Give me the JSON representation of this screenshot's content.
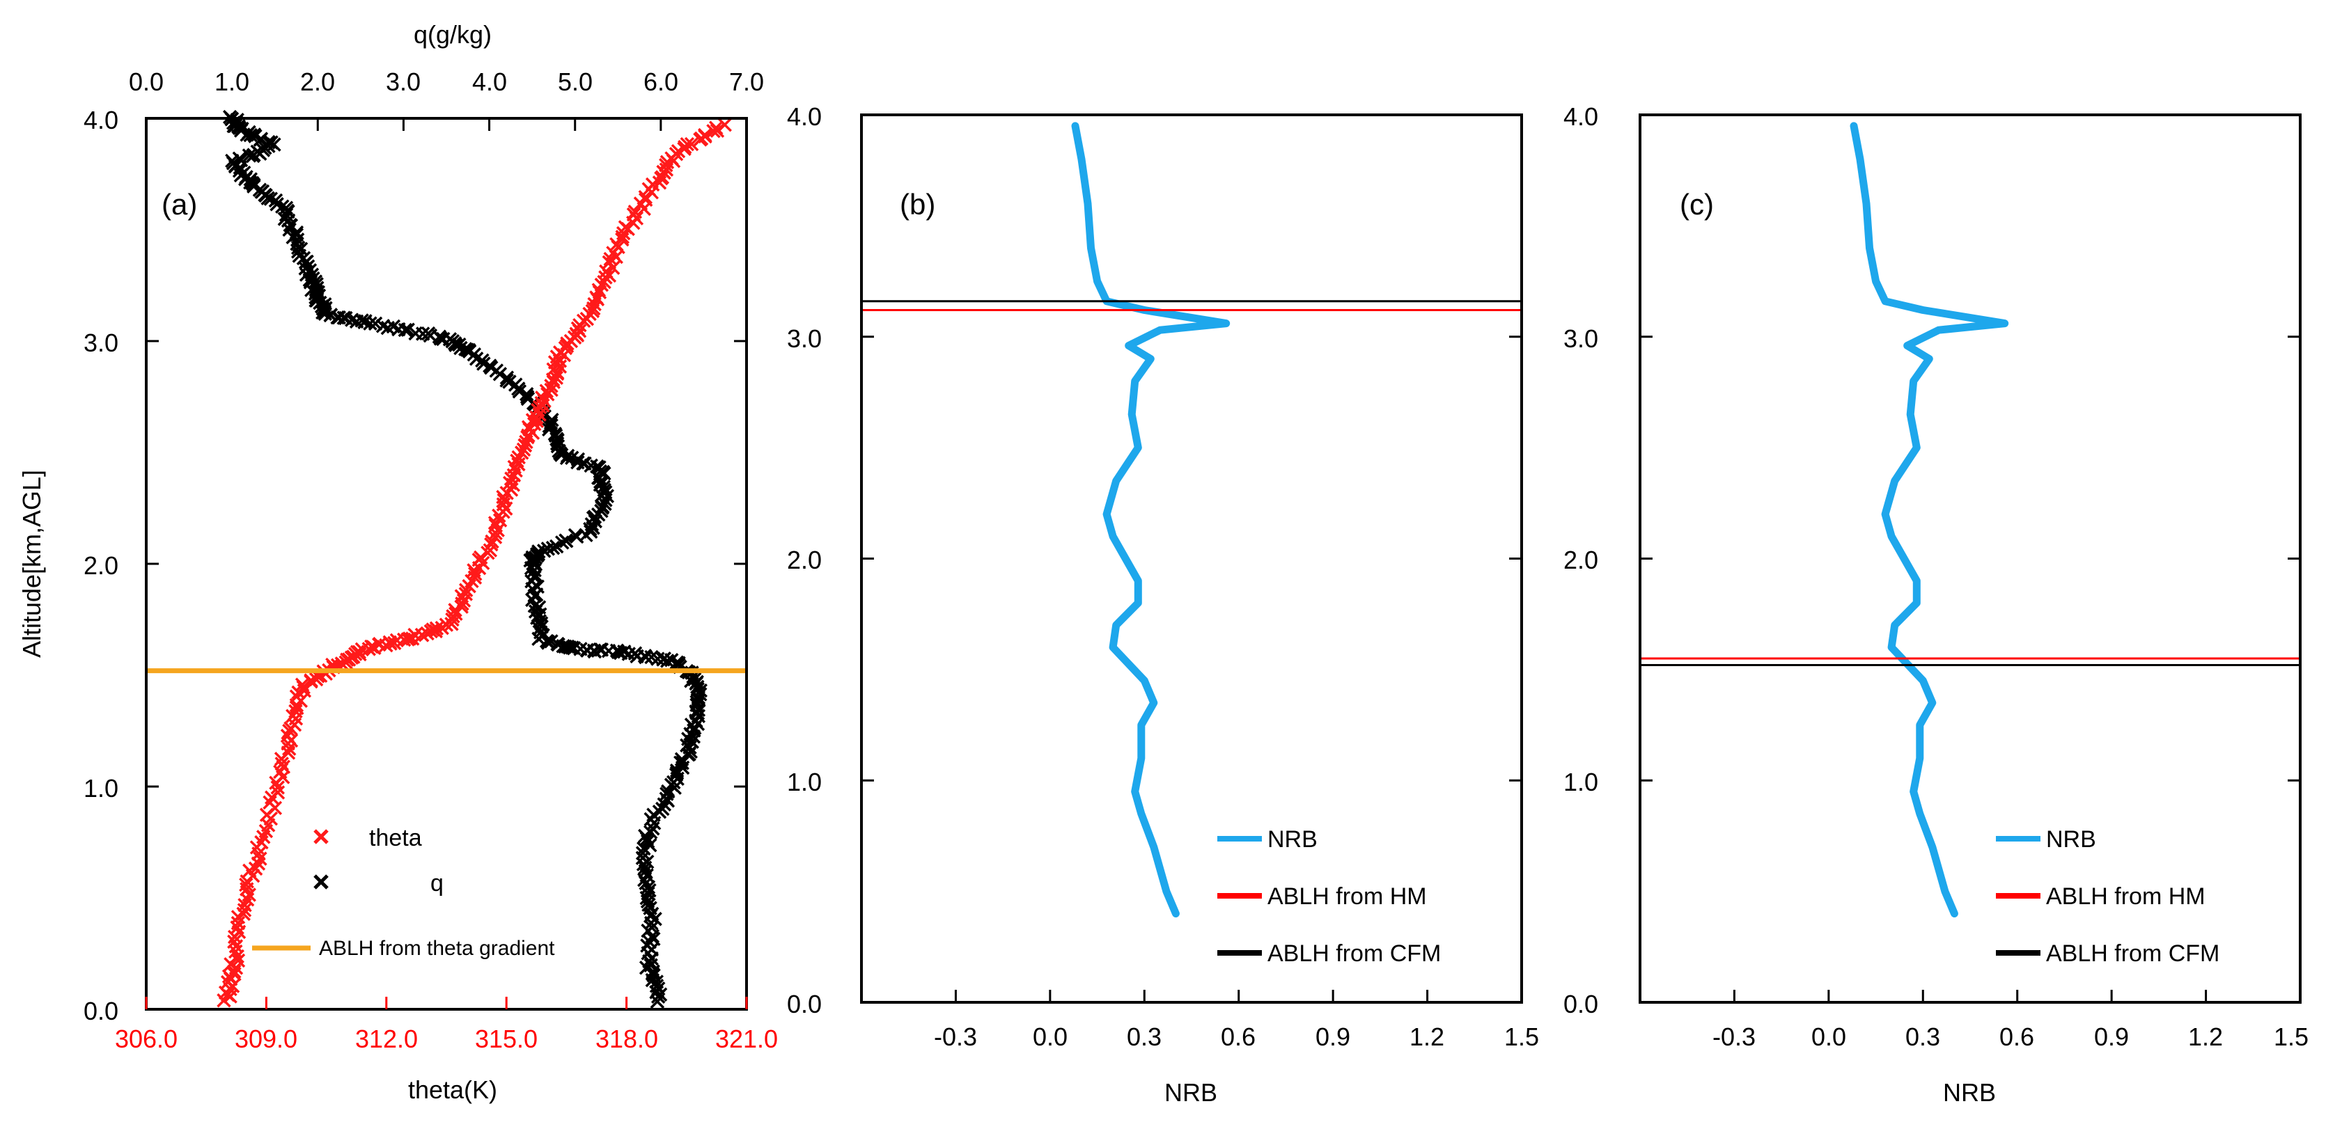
{
  "colors": {
    "theta": "#ff1a1a",
    "q": "#000000",
    "nrb": "#1ea7ec",
    "hm": "#ff0000",
    "cfm": "#000000",
    "theta_gradient": "#f5a51f",
    "red_axis": "#ff0000"
  },
  "chart_data": [
    {
      "type": "scatter",
      "panel_label": "(a)",
      "ylabel": "Altitude[km,AGL]",
      "ylim": [
        0,
        4
      ],
      "yticks": [
        "0.0",
        "1.0",
        "2.0",
        "3.0",
        "4.0"
      ],
      "bottom_axis": {
        "label": "theta(K)",
        "range": [
          306,
          321
        ],
        "ticks": [
          "306.0",
          "309.0",
          "312.0",
          "315.0",
          "318.0",
          "321.0"
        ]
      },
      "top_axis": {
        "label": "q(g/kg)",
        "range": [
          0,
          7
        ],
        "ticks": [
          "0.0",
          "1.0",
          "2.0",
          "3.0",
          "4.0",
          "5.0",
          "6.0",
          "7.0"
        ]
      },
      "series": [
        {
          "name": "theta",
          "axis": "bottom",
          "marker": "x",
          "points": [
            [
              308.0,
              0.04
            ],
            [
              308.2,
              0.2
            ],
            [
              308.4,
              0.45
            ],
            [
              308.8,
              0.7
            ],
            [
              309.3,
              1.0
            ],
            [
              309.6,
              1.25
            ],
            [
              309.9,
              1.45
            ],
            [
              310.8,
              1.55
            ],
            [
              311.5,
              1.62
            ],
            [
              312.5,
              1.66
            ],
            [
              313.5,
              1.72
            ],
            [
              314.1,
              1.9
            ],
            [
              314.6,
              2.1
            ],
            [
              315.0,
              2.3
            ],
            [
              315.4,
              2.5
            ],
            [
              315.7,
              2.65
            ],
            [
              316.1,
              2.8
            ],
            [
              316.4,
              2.95
            ],
            [
              317.0,
              3.1
            ],
            [
              317.5,
              3.3
            ],
            [
              318.0,
              3.5
            ],
            [
              318.7,
              3.7
            ],
            [
              319.3,
              3.85
            ],
            [
              320.4,
              3.97
            ]
          ]
        },
        {
          "name": "q",
          "axis": "top",
          "marker": "x",
          "points": [
            [
              6.0,
              0.04
            ],
            [
              5.85,
              0.2
            ],
            [
              5.9,
              0.4
            ],
            [
              5.8,
              0.6
            ],
            [
              5.85,
              0.8
            ],
            [
              6.15,
              1.0
            ],
            [
              6.3,
              1.15
            ],
            [
              6.4,
              1.3
            ],
            [
              6.45,
              1.45
            ],
            [
              6.2,
              1.56
            ],
            [
              5.6,
              1.6
            ],
            [
              5.0,
              1.62
            ],
            [
              4.6,
              1.66
            ],
            [
              4.55,
              1.8
            ],
            [
              4.5,
              2.0
            ],
            [
              4.55,
              2.05
            ],
            [
              5.2,
              2.15
            ],
            [
              5.35,
              2.3
            ],
            [
              5.3,
              2.42
            ],
            [
              4.8,
              2.5
            ],
            [
              4.7,
              2.65
            ],
            [
              4.3,
              2.8
            ],
            [
              3.8,
              2.95
            ],
            [
              3.4,
              3.02
            ],
            [
              2.6,
              3.08
            ],
            [
              2.1,
              3.12
            ],
            [
              2.0,
              3.2
            ],
            [
              1.9,
              3.3
            ],
            [
              1.75,
              3.45
            ],
            [
              1.6,
              3.6
            ],
            [
              1.25,
              3.7
            ],
            [
              1.0,
              3.8
            ],
            [
              1.5,
              3.88
            ],
            [
              1.1,
              3.95
            ],
            [
              1.0,
              4.0
            ]
          ]
        },
        {
          "name": "ABLH from theta gradient",
          "type": "hline",
          "y": 1.52
        }
      ],
      "legend": {
        "position": "bottom-right",
        "entries": [
          "theta",
          "q",
          "ABLH from theta gradient"
        ]
      }
    },
    {
      "type": "line",
      "panel_label": "(b)",
      "xlabel": "NRB",
      "xlim": [
        -0.6,
        1.5
      ],
      "ylim": [
        0,
        4
      ],
      "xticks": [
        "-0.3",
        "0.0",
        "0.3",
        "0.6",
        "0.9",
        "1.2",
        "1.5"
      ],
      "yticks": [
        "0.0",
        "1.0",
        "2.0",
        "3.0",
        "4.0"
      ],
      "series": [
        {
          "name": "NRB",
          "points": [
            [
              0.4,
              0.4
            ],
            [
              0.37,
              0.5
            ],
            [
              0.33,
              0.7
            ],
            [
              0.29,
              0.85
            ],
            [
              0.27,
              0.95
            ],
            [
              0.29,
              1.1
            ],
            [
              0.29,
              1.25
            ],
            [
              0.33,
              1.35
            ],
            [
              0.3,
              1.45
            ],
            [
              0.2,
              1.6
            ],
            [
              0.21,
              1.7
            ],
            [
              0.28,
              1.8
            ],
            [
              0.28,
              1.9
            ],
            [
              0.2,
              2.1
            ],
            [
              0.18,
              2.2
            ],
            [
              0.21,
              2.35
            ],
            [
              0.28,
              2.5
            ],
            [
              0.26,
              2.65
            ],
            [
              0.27,
              2.8
            ],
            [
              0.32,
              2.9
            ],
            [
              0.25,
              2.96
            ],
            [
              0.35,
              3.03
            ],
            [
              0.56,
              3.06
            ],
            [
              0.3,
              3.12
            ],
            [
              0.18,
              3.16
            ],
            [
              0.15,
              3.25
            ],
            [
              0.13,
              3.4
            ],
            [
              0.12,
              3.6
            ],
            [
              0.1,
              3.8
            ],
            [
              0.08,
              3.95
            ]
          ]
        },
        {
          "name": "ABLH from HM",
          "type": "hline",
          "y": 3.12
        },
        {
          "name": "ABLH from CFM",
          "type": "hline",
          "y": 3.16
        }
      ],
      "legend": {
        "position": "bottom-right",
        "entries": [
          "NRB",
          "ABLH from HM",
          "ABLH from CFM"
        ]
      }
    },
    {
      "type": "line",
      "panel_label": "(c)",
      "xlabel": "NRB",
      "xlim": [
        -0.6,
        1.5
      ],
      "ylim": [
        0,
        4
      ],
      "xticks": [
        "-0.3",
        "0.0",
        "0.3",
        "0.6",
        "0.9",
        "1.2",
        "1.5"
      ],
      "yticks": [
        "0.0",
        "1.0",
        "2.0",
        "3.0",
        "4.0"
      ],
      "series": [
        {
          "name": "NRB",
          "points": [
            [
              0.4,
              0.4
            ],
            [
              0.37,
              0.5
            ],
            [
              0.33,
              0.7
            ],
            [
              0.29,
              0.85
            ],
            [
              0.27,
              0.95
            ],
            [
              0.29,
              1.1
            ],
            [
              0.29,
              1.25
            ],
            [
              0.33,
              1.35
            ],
            [
              0.3,
              1.45
            ],
            [
              0.2,
              1.6
            ],
            [
              0.21,
              1.7
            ],
            [
              0.28,
              1.8
            ],
            [
              0.28,
              1.9
            ],
            [
              0.2,
              2.1
            ],
            [
              0.18,
              2.2
            ],
            [
              0.21,
              2.35
            ],
            [
              0.28,
              2.5
            ],
            [
              0.26,
              2.65
            ],
            [
              0.27,
              2.8
            ],
            [
              0.32,
              2.9
            ],
            [
              0.25,
              2.96
            ],
            [
              0.35,
              3.03
            ],
            [
              0.56,
              3.06
            ],
            [
              0.3,
              3.12
            ],
            [
              0.18,
              3.16
            ],
            [
              0.15,
              3.25
            ],
            [
              0.13,
              3.4
            ],
            [
              0.12,
              3.6
            ],
            [
              0.1,
              3.8
            ],
            [
              0.08,
              3.95
            ]
          ]
        },
        {
          "name": "ABLH from HM",
          "type": "hline",
          "y": 1.55
        },
        {
          "name": "ABLH from CFM",
          "type": "hline",
          "y": 1.52
        }
      ],
      "legend": {
        "position": "bottom-right",
        "entries": [
          "NRB",
          "ABLH from HM",
          "ABLH from CFM"
        ]
      }
    }
  ]
}
